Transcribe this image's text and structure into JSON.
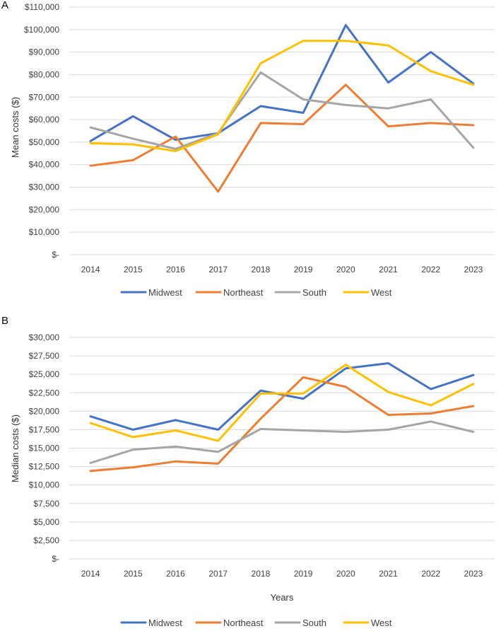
{
  "chart_data": [
    {
      "type": "line",
      "panel_label": "A",
      "title": "",
      "xlabel": "",
      "ylabel": "Mean costs ($)",
      "categories": [
        "2014",
        "2015",
        "2016",
        "2017",
        "2018",
        "2019",
        "2020",
        "2021",
        "2022",
        "2023"
      ],
      "ylim": [
        0,
        110000
      ],
      "ytick_step": 10000,
      "ytick_labels": [
        "$-",
        "$10,000",
        "$20,000",
        "$30,000",
        "$40,000",
        "$50,000",
        "$60,000",
        "$70,000",
        "$80,000",
        "$90,000",
        "$100,000",
        "$110,000"
      ],
      "grid": true,
      "legend_position": "bottom",
      "series": [
        {
          "name": "Midwest",
          "color": "#4472c4",
          "values": [
            50500,
            61500,
            51000,
            54000,
            66000,
            63000,
            102000,
            76500,
            90000,
            76000
          ]
        },
        {
          "name": "Northeast",
          "color": "#ed7d31",
          "values": [
            39500,
            42000,
            52500,
            28000,
            58500,
            58000,
            75500,
            57000,
            58500,
            57500
          ]
        },
        {
          "name": "South",
          "color": "#a5a5a5",
          "values": [
            56500,
            51500,
            47000,
            54000,
            81000,
            69000,
            66500,
            65000,
            69000,
            47500
          ]
        },
        {
          "name": "West",
          "color": "#ffc000",
          "values": [
            49500,
            49000,
            46000,
            53500,
            85000,
            95000,
            95000,
            93000,
            81500,
            75500
          ]
        }
      ]
    },
    {
      "type": "line",
      "panel_label": "B",
      "title": "",
      "xlabel": "Years",
      "ylabel": "Median costs ($)",
      "categories": [
        "2014",
        "2015",
        "2016",
        "2017",
        "2018",
        "2019",
        "2020",
        "2021",
        "2022",
        "2023"
      ],
      "ylim": [
        0,
        30000
      ],
      "ytick_step": 2500,
      "ytick_labels": [
        "$-",
        "$2,500",
        "$5,000",
        "$7,500",
        "$10,000",
        "$12,500",
        "$15,000",
        "$17,500",
        "$20,000",
        "$22,500",
        "$25,000",
        "$27,500",
        "$30,000"
      ],
      "grid": true,
      "legend_position": "bottom",
      "series": [
        {
          "name": "Midwest",
          "color": "#4472c4",
          "values": [
            19300,
            17500,
            18800,
            17500,
            22800,
            21700,
            25800,
            26500,
            23000,
            24900
          ]
        },
        {
          "name": "Northeast",
          "color": "#ed7d31",
          "values": [
            11900,
            12400,
            13200,
            12900,
            19000,
            24600,
            23300,
            19500,
            19700,
            20700
          ]
        },
        {
          "name": "South",
          "color": "#a5a5a5",
          "values": [
            13000,
            14800,
            15200,
            14500,
            17600,
            17400,
            17200,
            17500,
            18600,
            17200
          ]
        },
        {
          "name": "West",
          "color": "#ffc000",
          "values": [
            18400,
            16500,
            17400,
            16000,
            22400,
            22400,
            26300,
            22600,
            20800,
            23700
          ]
        }
      ]
    }
  ]
}
